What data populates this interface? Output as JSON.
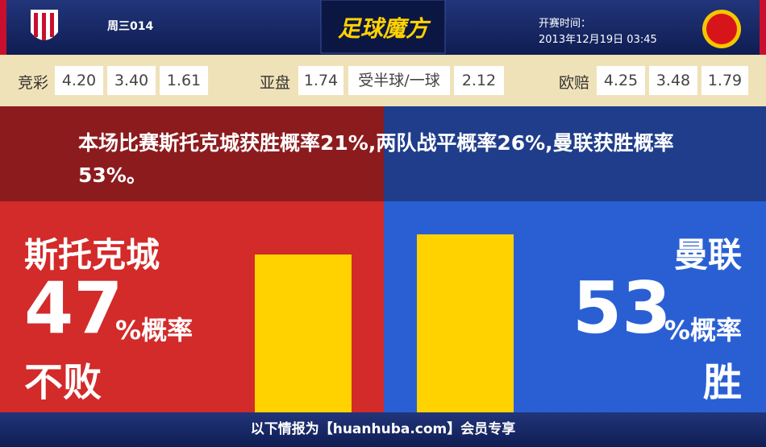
{
  "header": {
    "match_code": "周三014",
    "brand": "足球魔方",
    "kickoff_label": "开赛时间：",
    "kickoff_time": "2013年12月19日 03:45"
  },
  "odds": [
    {
      "label": "竞彩",
      "values": [
        "4.20",
        "3.40",
        "1.61"
      ]
    },
    {
      "label": "亚盘",
      "values": [
        "1.74",
        "受半球/一球",
        "2.12"
      ]
    },
    {
      "label": "欧赔",
      "values": [
        "4.25",
        "3.48",
        "1.79"
      ]
    }
  ],
  "summary": "本场比赛斯托克城获胜概率21%,两队战平概率26%,曼联获胜概率53%。",
  "teams": [
    {
      "name": "斯托克城",
      "percent": 47,
      "unit": "%概率",
      "outcome": "不败"
    },
    {
      "name": "曼联",
      "percent": 53,
      "unit": "%概率",
      "outcome": "胜"
    }
  ],
  "footer": "以下情报为【huanhuba.com】会员专享"
}
